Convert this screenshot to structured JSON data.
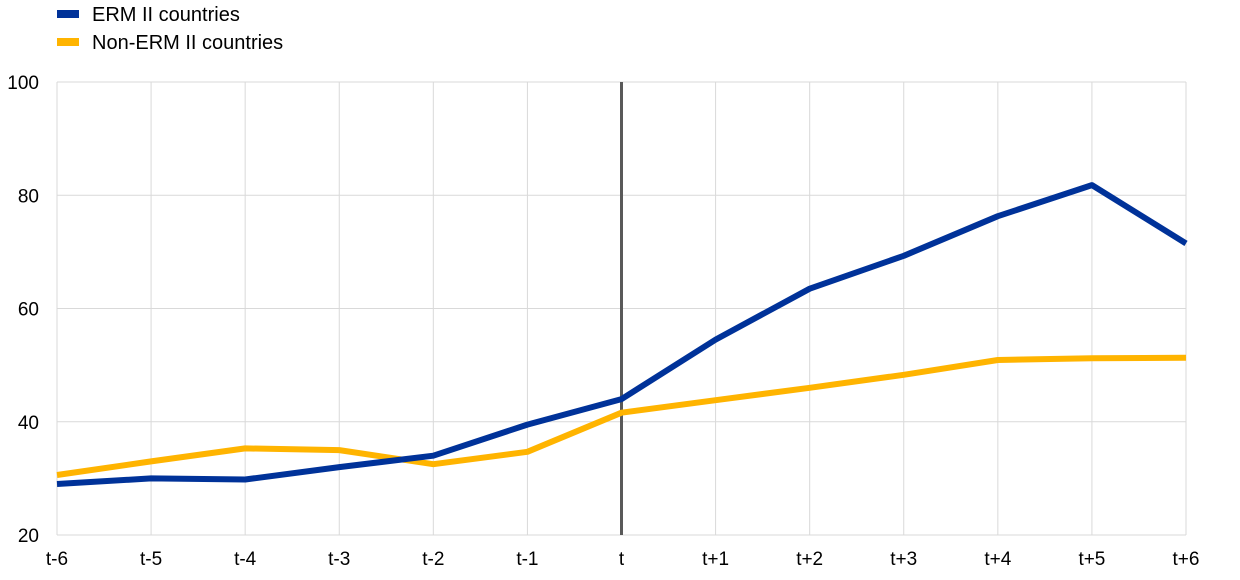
{
  "chart_data": {
    "type": "line",
    "title": "",
    "xlabel": "",
    "ylabel": "",
    "categories": [
      "t-6",
      "t-5",
      "t-4",
      "t-3",
      "t-2",
      "t-1",
      "t",
      "t+1",
      "t+2",
      "t+3",
      "t+4",
      "t+5",
      "t+6"
    ],
    "ylim": [
      20,
      100
    ],
    "yticks": [
      "20",
      "40",
      "60",
      "80",
      "100"
    ],
    "grid": true,
    "legend_position": "top-left",
    "reference_line_category": "t",
    "reference_line_color": "#595959",
    "series": [
      {
        "name": "ERM II countries",
        "color": "#003299",
        "values": [
          29.0,
          30.0,
          29.8,
          32.0,
          34.0,
          39.5,
          44.0,
          54.5,
          63.5,
          69.3,
          76.3,
          81.8,
          71.5
        ]
      },
      {
        "name": "Non-ERM II countries",
        "color": "#FFB400",
        "values": [
          30.6,
          33.0,
          35.3,
          35.0,
          32.5,
          34.7,
          41.6,
          43.8,
          46.0,
          48.3,
          50.9,
          51.2,
          51.3
        ]
      }
    ]
  }
}
